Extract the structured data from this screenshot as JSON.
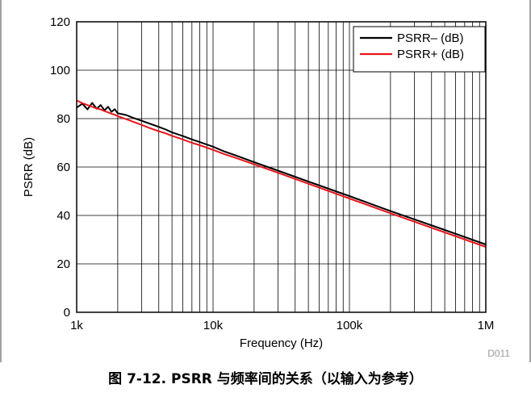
{
  "chart_data": {
    "type": "line",
    "xscale": "log",
    "xlim": [
      1000,
      1000000
    ],
    "ylim": [
      0,
      120
    ],
    "grid": true,
    "xlabel": "Frequency (Hz)",
    "ylabel": "PSRR (dB)",
    "x_ticks": [
      1000,
      10000,
      100000,
      1000000
    ],
    "x_tick_labels": [
      "1k",
      "10k",
      "100k",
      "1M"
    ],
    "y_ticks": [
      0,
      20,
      40,
      60,
      80,
      100,
      120
    ],
    "y_tick_labels": [
      "0",
      "20",
      "40",
      "60",
      "80",
      "100",
      "120"
    ],
    "legend_position": "top-right",
    "series": [
      {
        "name": "PSRR– (dB)",
        "color": "#000000",
        "x": [
          1000,
          1100,
          1200,
          1300,
          1400,
          1500,
          1600,
          1700,
          1800,
          1900,
          2000,
          2300,
          2600,
          3000,
          3400,
          3900,
          4500,
          5000,
          6000,
          7000,
          8000,
          9000,
          10000,
          12000,
          15000,
          20000,
          30000,
          50000,
          100000,
          200000,
          500000,
          1000000
        ],
        "y": [
          84.5,
          86.2,
          83.8,
          86.5,
          84.1,
          85.6,
          83.4,
          84.9,
          82.8,
          83.9,
          82.2,
          81.5,
          80.3,
          79.1,
          78.0,
          76.8,
          75.5,
          74.3,
          72.8,
          71.4,
          70.3,
          69.3,
          68.4,
          66.5,
          64.6,
          62.0,
          58.5,
          54.0,
          48.0,
          41.8,
          34.0,
          28.0
        ]
      },
      {
        "name": "PSRR+ (dB)",
        "color": "#e8141a",
        "x": [
          1000,
          1100,
          1200,
          1300,
          1400,
          1500,
          1600,
          1700,
          1800,
          1900,
          2000,
          2300,
          2600,
          3000,
          3400,
          3900,
          4500,
          5000,
          6000,
          7000,
          8000,
          9000,
          10000,
          12000,
          15000,
          20000,
          30000,
          50000,
          100000,
          200000,
          500000,
          1000000
        ],
        "y": [
          87.5,
          86.4,
          85.6,
          84.9,
          84.2,
          83.8,
          83.1,
          82.6,
          82.0,
          81.6,
          81.0,
          79.8,
          78.7,
          77.4,
          76.2,
          75.0,
          73.9,
          72.9,
          71.4,
          70.0,
          69.0,
          68.0,
          67.1,
          65.4,
          63.6,
          61.1,
          57.6,
          53.1,
          47.0,
          40.9,
          33.0,
          27.0
        ]
      }
    ]
  },
  "figure_code": "D011",
  "caption": "图 7-12. PSRR 与频率间的关系（以输入为参考）"
}
